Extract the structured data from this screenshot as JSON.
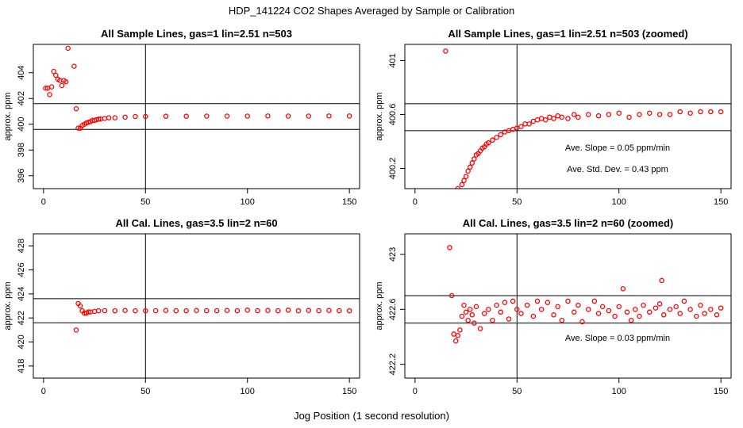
{
  "figure": {
    "title": "HDP_141224  CO2 Shapes Averaged by Sample or Calibration",
    "xlabel": "Jog Position (1 second resolution)"
  },
  "chart_data": [
    {
      "type": "scatter",
      "title": "All Sample Lines, gas=1 lin=2.51 n=503",
      "xlabel": "",
      "ylabel": "approx. ppm",
      "xlim": [
        -5,
        155
      ],
      "ylim": [
        395,
        406.2
      ],
      "xticks": [
        0,
        50,
        100,
        150
      ],
      "yticks": [
        396,
        398,
        400,
        402,
        404
      ],
      "point_color": "#ff0000",
      "marker": "open-circle",
      "vline": 50,
      "hlines": [
        401.6,
        399.6
      ],
      "annotations": [],
      "x": [
        1,
        2,
        3,
        4,
        5,
        6,
        7,
        8,
        9,
        10,
        11,
        12,
        15,
        16,
        17,
        18,
        19,
        20,
        21,
        22,
        23,
        24,
        25,
        26,
        27,
        28,
        30,
        32,
        35,
        40,
        45,
        50,
        60,
        70,
        80,
        90,
        100,
        110,
        120,
        130,
        140,
        150
      ],
      "y": [
        402.8,
        402.8,
        402.3,
        402.9,
        404.1,
        403.8,
        403.5,
        403.4,
        403.0,
        403.4,
        403.3,
        405.9,
        404.5,
        401.2,
        399.7,
        399.7,
        399.9,
        400.0,
        400.1,
        400.15,
        400.2,
        400.3,
        400.3,
        400.35,
        400.4,
        400.4,
        400.45,
        400.5,
        400.5,
        400.55,
        400.6,
        400.6,
        400.62,
        400.62,
        400.63,
        400.63,
        400.63,
        400.64,
        400.63,
        400.63,
        400.64,
        400.64
      ]
    },
    {
      "type": "scatter",
      "title": "All Sample Lines, gas=1 lin=2.51 n=503 (zoomed)",
      "xlabel": "",
      "ylabel": "approx. ppm",
      "xlim": [
        -5,
        155
      ],
      "ylim": [
        400.05,
        401.12
      ],
      "xticks": [
        0,
        50,
        100,
        150
      ],
      "yticks": [
        400.2,
        400.6,
        401.0
      ],
      "point_color": "#ff0000",
      "marker": "open-circle",
      "vline": 50,
      "hlines": [
        400.68,
        400.48
      ],
      "annotations": [
        "Ave. Slope =  0.05  ppm/min",
        "Ave. Std. Dev. =  0.43  ppm"
      ],
      "x": [
        15,
        21,
        23,
        24,
        25,
        26,
        27,
        28,
        29,
        30,
        31,
        32,
        33,
        34,
        35,
        36,
        38,
        40,
        42,
        44,
        46,
        48,
        50,
        52,
        54,
        56,
        58,
        60,
        62,
        64,
        66,
        68,
        70,
        72,
        75,
        78,
        80,
        85,
        90,
        95,
        100,
        105,
        110,
        115,
        120,
        125,
        130,
        135,
        140,
        145,
        150
      ],
      "y": [
        401.07,
        400.05,
        400.08,
        400.11,
        400.14,
        400.18,
        400.21,
        400.24,
        400.27,
        400.3,
        400.31,
        400.33,
        400.35,
        400.36,
        400.38,
        400.39,
        400.41,
        400.43,
        400.45,
        400.47,
        400.48,
        400.49,
        400.5,
        400.51,
        400.53,
        400.53,
        400.55,
        400.56,
        400.57,
        400.56,
        400.58,
        400.57,
        400.59,
        400.58,
        400.57,
        400.6,
        400.58,
        400.6,
        400.59,
        400.6,
        400.61,
        400.58,
        400.6,
        400.61,
        400.6,
        400.6,
        400.62,
        400.61,
        400.62,
        400.62,
        400.62
      ]
    },
    {
      "type": "scatter",
      "title": "All Cal. Lines, gas=3.5 lin=2 n=60",
      "xlabel": "",
      "ylabel": "approx. ppm",
      "xlim": [
        -5,
        155
      ],
      "ylim": [
        417,
        429
      ],
      "xticks": [
        0,
        50,
        100,
        150
      ],
      "yticks": [
        418,
        420,
        422,
        424,
        426,
        428
      ],
      "point_color": "#ff0000",
      "marker": "open-circle",
      "vline": 50,
      "hlines": [
        423.6,
        421.6
      ],
      "annotations": [],
      "x": [
        16,
        17,
        18,
        19,
        20,
        21,
        22,
        23,
        25,
        27,
        30,
        35,
        40,
        45,
        50,
        55,
        60,
        65,
        70,
        75,
        80,
        85,
        90,
        95,
        100,
        105,
        110,
        115,
        120,
        125,
        130,
        135,
        140,
        145,
        150
      ],
      "y": [
        421.0,
        423.2,
        423.0,
        422.6,
        422.4,
        422.4,
        422.5,
        422.5,
        422.55,
        422.6,
        422.6,
        422.6,
        422.62,
        422.6,
        422.6,
        422.6,
        422.62,
        422.6,
        422.6,
        422.62,
        422.6,
        422.6,
        422.62,
        422.6,
        422.65,
        422.6,
        422.62,
        422.6,
        422.65,
        422.6,
        422.62,
        422.6,
        422.62,
        422.6,
        422.6
      ]
    },
    {
      "type": "scatter",
      "title": "All Cal. Lines, gas=3.5 lin=2 n=60 (zoomed)",
      "xlabel": "",
      "ylabel": "approx. ppm",
      "xlim": [
        -5,
        155
      ],
      "ylim": [
        422.1,
        423.15
      ],
      "xticks": [
        0,
        50,
        100,
        150
      ],
      "yticks": [
        422.2,
        422.6,
        423.0
      ],
      "point_color": "#ff0000",
      "marker": "open-circle",
      "vline": 50,
      "hlines": [
        422.7,
        422.5
      ],
      "annotations": [
        "Ave. Slope =  0.03  ppm/min"
      ],
      "x": [
        17,
        18,
        19,
        20,
        21,
        22,
        23,
        24,
        25,
        26,
        27,
        28,
        29,
        30,
        32,
        34,
        36,
        38,
        40,
        42,
        44,
        46,
        48,
        50,
        52,
        55,
        58,
        60,
        62,
        65,
        68,
        70,
        72,
        75,
        78,
        80,
        82,
        85,
        88,
        90,
        92,
        95,
        98,
        100,
        102,
        104,
        106,
        108,
        110,
        112,
        115,
        118,
        120,
        121,
        122,
        125,
        128,
        130,
        132,
        135,
        138,
        140,
        142,
        145,
        148,
        150
      ],
      "y": [
        423.05,
        422.7,
        422.42,
        422.37,
        422.41,
        422.45,
        422.55,
        422.63,
        422.58,
        422.52,
        422.6,
        422.56,
        422.5,
        422.62,
        422.46,
        422.57,
        422.6,
        422.52,
        422.63,
        422.58,
        422.65,
        422.53,
        422.66,
        422.6,
        422.57,
        422.63,
        422.55,
        422.66,
        422.6,
        422.65,
        422.56,
        422.62,
        422.52,
        422.66,
        422.58,
        422.63,
        422.51,
        422.6,
        422.66,
        422.57,
        422.62,
        422.59,
        422.55,
        422.62,
        422.75,
        422.58,
        422.52,
        422.6,
        422.55,
        422.63,
        422.58,
        422.61,
        422.64,
        422.81,
        422.56,
        422.6,
        422.62,
        422.57,
        422.66,
        422.6,
        422.55,
        422.63,
        422.57,
        422.6,
        422.56,
        422.61
      ]
    }
  ]
}
